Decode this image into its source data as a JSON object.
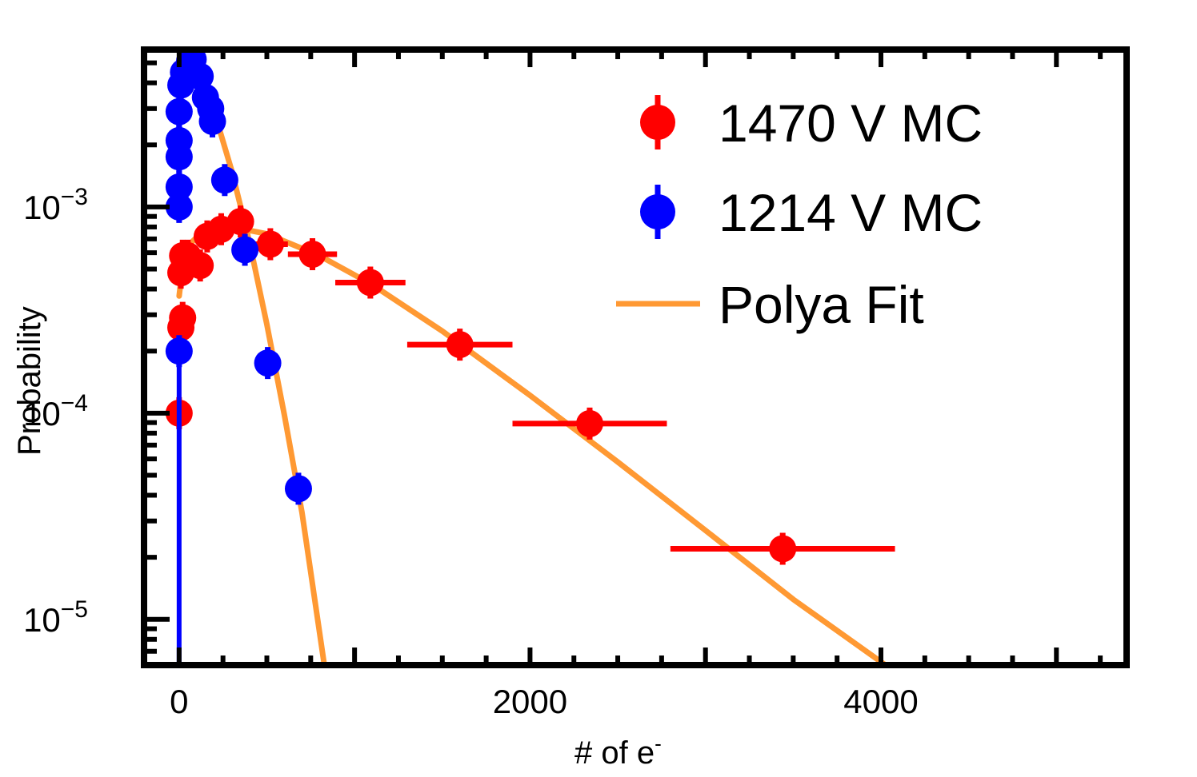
{
  "chart_data": {
    "type": "scatter",
    "xlabel": "# of e",
    "xlabel_sup": "-",
    "ylabel": "Probability",
    "xlim": [
      -200,
      5400
    ],
    "ylim": [
      6e-06,
      0.0058
    ],
    "yscale": "log",
    "x_ticks": [
      0,
      2000,
      4000
    ],
    "y_ticks": [
      {
        "value": 1e-05,
        "base": "10",
        "exp": "−5"
      },
      {
        "value": 0.0001,
        "base": "10",
        "exp": "−4"
      },
      {
        "value": 0.001,
        "base": "10",
        "exp": "−3"
      }
    ],
    "grid": false,
    "legend_position": "top-right",
    "series": [
      {
        "name": "1470 V MC",
        "color": "#ff0000",
        "points": [
          {
            "x": 0,
            "y": 0.0001,
            "xerr": 5
          },
          {
            "x": 10,
            "y": 0.00026,
            "xerr": 5
          },
          {
            "x": 20,
            "y": 0.00029,
            "xerr": 5
          },
          {
            "x": 10,
            "y": 0.00048,
            "xerr": 10
          },
          {
            "x": 20,
            "y": 0.00058,
            "xerr": 10
          },
          {
            "x": 50,
            "y": 0.00058,
            "xerr": 20
          },
          {
            "x": 120,
            "y": 0.00052,
            "xerr": 30
          },
          {
            "x": 160,
            "y": 0.00072,
            "xerr": 40
          },
          {
            "x": 240,
            "y": 0.00078,
            "xerr": 40
          },
          {
            "x": 350,
            "y": 0.00085,
            "xerr": 60
          },
          {
            "x": 520,
            "y": 0.00066,
            "xerr": 100
          },
          {
            "x": 760,
            "y": 0.00059,
            "xerr": 140
          },
          {
            "x": 1090,
            "y": 0.00043,
            "xerr": 200
          },
          {
            "x": 1600,
            "y": 0.000215,
            "xerr": 300
          },
          {
            "x": 2340,
            "y": 8.9e-05,
            "xerr": 440
          },
          {
            "x": 3440,
            "y": 2.2e-05,
            "xerr": 640
          }
        ]
      },
      {
        "name": "1214 V MC",
        "color": "#0000ff",
        "points": [
          {
            "x": 0,
            "y": 0.0002,
            "xerr": 4
          },
          {
            "x": 0,
            "y": 0.001,
            "xerr": 4
          },
          {
            "x": 0,
            "y": 0.00125,
            "xerr": 4
          },
          {
            "x": 0,
            "y": 0.00175,
            "xerr": 4
          },
          {
            "x": 0,
            "y": 0.0021,
            "xerr": 4
          },
          {
            "x": 0,
            "y": 0.0029,
            "xerr": 4
          },
          {
            "x": 10,
            "y": 0.0039,
            "xerr": 6
          },
          {
            "x": 25,
            "y": 0.0045,
            "xerr": 8
          },
          {
            "x": 60,
            "y": 0.0051,
            "xerr": 10
          },
          {
            "x": 80,
            "y": 0.0052,
            "xerr": 12
          },
          {
            "x": 120,
            "y": 0.0043,
            "xerr": 15
          },
          {
            "x": 150,
            "y": 0.0034,
            "xerr": 20
          },
          {
            "x": 180,
            "y": 0.003,
            "xerr": 22
          },
          {
            "x": 190,
            "y": 0.0026,
            "xerr": 25
          },
          {
            "x": 260,
            "y": 0.00135,
            "xerr": 30
          },
          {
            "x": 375,
            "y": 0.00062,
            "xerr": 35
          },
          {
            "x": 505,
            "y": 0.000175,
            "xerr": 40
          },
          {
            "x": 680,
            "y": 4.3e-05,
            "xerr": 50
          }
        ]
      }
    ],
    "fits": [
      {
        "name": "Polya Fit",
        "color": "#ff9933",
        "curves": [
          [
            [
              0,
              0.0027
            ],
            [
              10,
              0.0038
            ],
            [
              30,
              0.0048
            ],
            [
              50,
              0.0052
            ],
            [
              70,
              0.0051
            ],
            [
              120,
              0.0044
            ],
            [
              200,
              0.0029
            ],
            [
              300,
              0.0015
            ],
            [
              400,
              0.00068
            ],
            [
              500,
              0.00027
            ],
            [
              600,
              9.8e-05
            ],
            [
              700,
              3.3e-05
            ],
            [
              830,
              5.8e-06
            ]
          ],
          [
            [
              0,
              0.00037
            ],
            [
              25,
              0.00056
            ],
            [
              60,
              0.00066
            ],
            [
              120,
              0.00074
            ],
            [
              200,
              0.00079
            ],
            [
              300,
              0.0008
            ],
            [
              500,
              0.00074
            ],
            [
              800,
              0.00058
            ],
            [
              1100,
              0.00042
            ],
            [
              1500,
              0.00025
            ],
            [
              2000,
              0.000122
            ],
            [
              2500,
              5.8e-05
            ],
            [
              3000,
              2.7e-05
            ],
            [
              3500,
              1.25e-05
            ],
            [
              4050,
              5.8e-06
            ]
          ]
        ]
      }
    ]
  },
  "legend": [
    {
      "label": "1470 V MC",
      "kind": "marker",
      "color": "#ff0000"
    },
    {
      "label": "1214 V MC",
      "kind": "marker",
      "color": "#0000ff"
    },
    {
      "label": "Polya Fit",
      "kind": "line",
      "color": "#ff9933"
    }
  ]
}
